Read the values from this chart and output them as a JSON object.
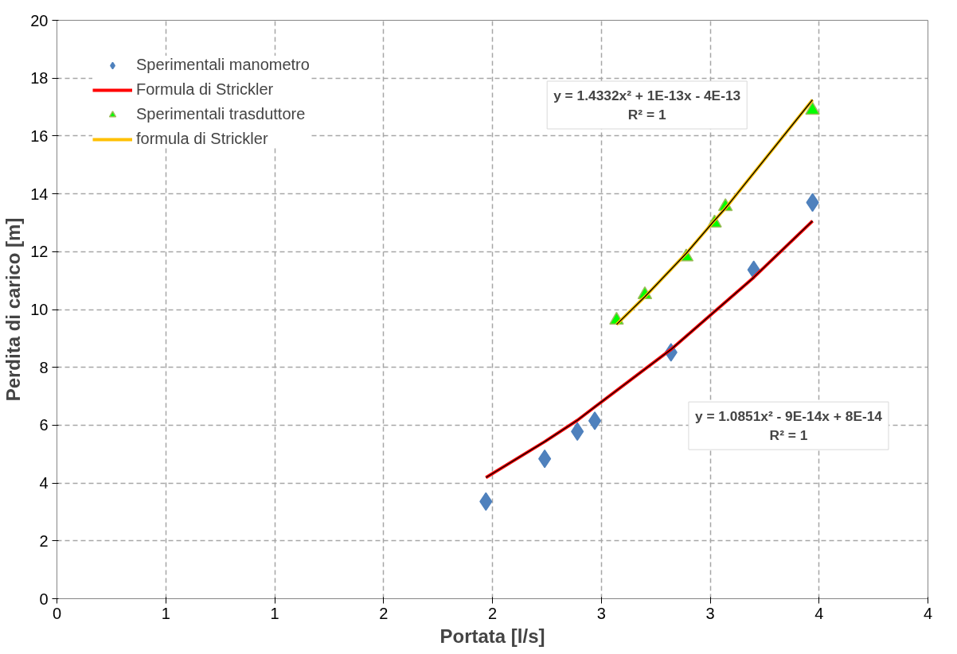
{
  "chart_data": {
    "type": "scatter",
    "xlabel": "Portata [l/s]",
    "ylabel": "Perdita di carico [m]",
    "xlim": [
      0,
      4
    ],
    "ylim": [
      0,
      20
    ],
    "xticks": [
      0,
      {
        "value": 0.5,
        "label": "1"
      },
      1,
      {
        "value": 1.5,
        "label": "2"
      },
      2,
      {
        "value": 2.5,
        "label": "3"
      },
      3,
      {
        "value": 3.5,
        "label": "4"
      },
      4
    ],
    "yticks": [
      0,
      2,
      4,
      6,
      8,
      10,
      12,
      14,
      16,
      18,
      20
    ],
    "grid": true,
    "legend": "top left",
    "line_style": "solid",
    "series": [
      {
        "name": "Sperimentali manometro",
        "marker": "diamond",
        "color": "#4f81bd",
        "x": [
          1.97,
          2.24,
          2.39,
          2.47,
          2.82,
          3.2,
          3.47
        ],
        "values": [
          3.36,
          4.84,
          5.78,
          6.15,
          8.52,
          11.37,
          13.7
        ]
      },
      {
        "name": "Formula di Strickler",
        "type": "line",
        "color": "#ff0000",
        "x": [
          1.97,
          2.24,
          2.39,
          2.47,
          2.82,
          3.2,
          3.47
        ],
        "values": [
          4.19,
          5.43,
          6.17,
          6.63,
          8.62,
          11.11,
          13.06
        ]
      },
      {
        "type": "line",
        "color": "#000000",
        "x": [
          1.97,
          2.24,
          2.39,
          2.47,
          2.82,
          3.2,
          3.47
        ],
        "values": [
          4.19,
          5.43,
          6.17,
          6.63,
          8.62,
          11.11,
          13.06
        ]
      },
      {
        "name": "Sperimentali trasduttore",
        "marker": "triangle",
        "color": "#00ff00",
        "x": [
          2.57,
          2.7,
          2.89,
          3.02,
          3.07,
          3.47
        ],
        "values": [
          9.63,
          10.51,
          11.82,
          12.99,
          13.56,
          16.89
        ]
      },
      {
        "name": "formula di Strickler",
        "type": "line",
        "color": "#ffc000",
        "x": [
          2.57,
          2.7,
          2.89,
          3.02,
          3.07,
          3.47
        ],
        "values": [
          9.48,
          10.44,
          11.94,
          13.08,
          13.5,
          17.25
        ]
      },
      {
        "type": "line",
        "color": "#000000",
        "x": [
          2.57,
          2.7,
          2.89,
          3.02,
          3.07,
          3.47
        ],
        "values": [
          9.48,
          10.44,
          11.94,
          13.08,
          13.5,
          17.25
        ]
      }
    ],
    "annotations": [
      "y = 1.4332x² + 1E-13x - 4E-13\nR² = 1",
      "y = 1.0851x² - 9E-14x + 8E-14\nR² = 1"
    ]
  }
}
